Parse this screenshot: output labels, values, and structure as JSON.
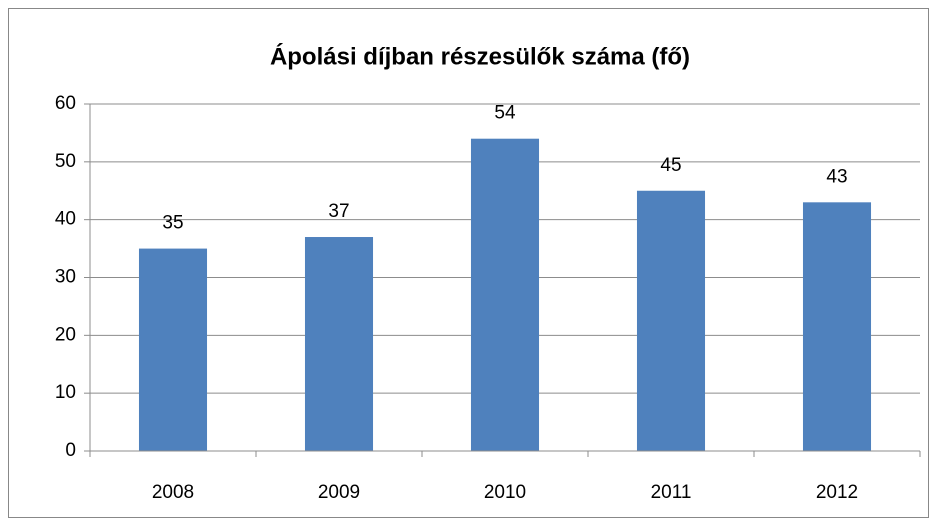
{
  "chart_data": {
    "type": "bar",
    "title": "Ápolási díjban részesülők száma (fő)",
    "categories": [
      "2008",
      "2009",
      "2010",
      "2011",
      "2012"
    ],
    "values": [
      35,
      37,
      54,
      45,
      43
    ],
    "color": "#4f81bd",
    "ylim": [
      0,
      60
    ],
    "yticks": [
      0,
      10,
      20,
      30,
      40,
      50,
      60
    ],
    "grid": true
  }
}
